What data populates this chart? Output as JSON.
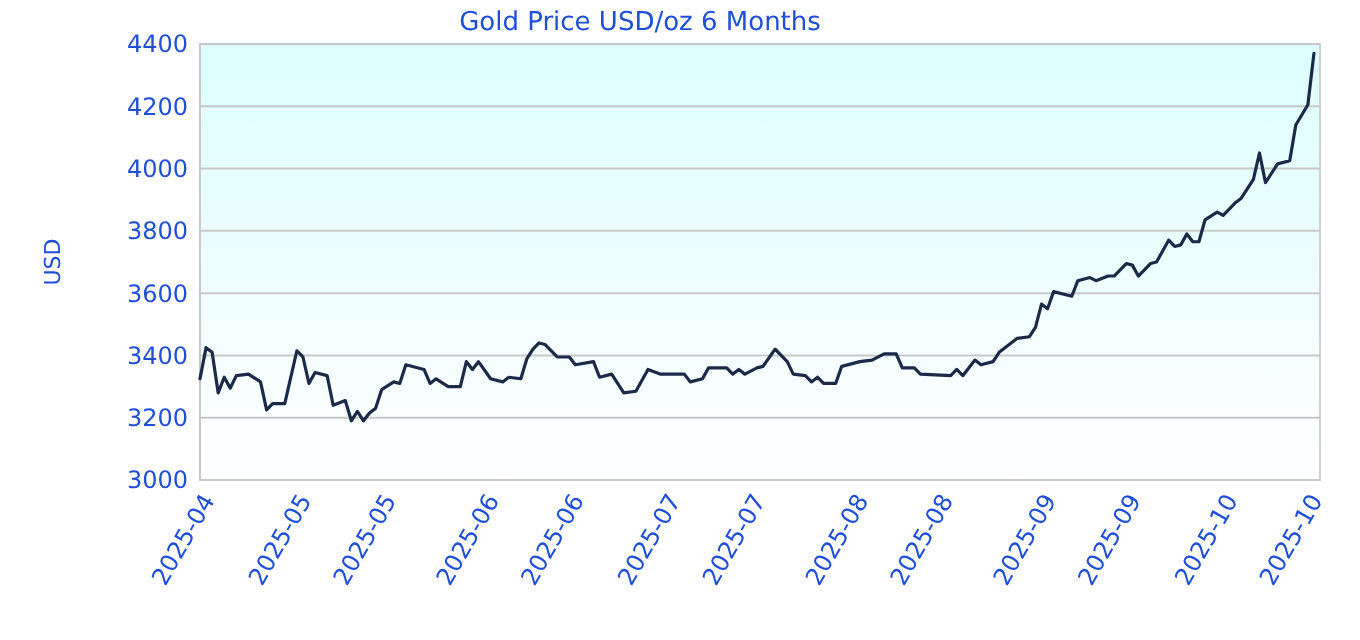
{
  "chart_data": {
    "type": "line",
    "title": "Gold Price USD/oz 6 Months",
    "ylabel": "USD",
    "xlim": [
      "2025-04-15",
      "2025-10-17"
    ],
    "xticks": [
      {
        "value": "2025-04-15",
        "label": "2025-04"
      },
      {
        "value": "2025-05-01",
        "label": "2025-05"
      },
      {
        "value": "2025-05-15",
        "label": "2025-05"
      },
      {
        "value": "2025-06-01",
        "label": "2025-06"
      },
      {
        "value": "2025-06-15",
        "label": "2025-06"
      },
      {
        "value": "2025-07-01",
        "label": "2025-07"
      },
      {
        "value": "2025-07-15",
        "label": "2025-07"
      },
      {
        "value": "2025-08-01",
        "label": "2025-08"
      },
      {
        "value": "2025-08-15",
        "label": "2025-08"
      },
      {
        "value": "2025-09-01",
        "label": "2025-09"
      },
      {
        "value": "2025-09-15",
        "label": "2025-09"
      },
      {
        "value": "2025-10-01",
        "label": "2025-10"
      },
      {
        "value": "2025-10-15",
        "label": "2025-10"
      }
    ],
    "ylim": [
      3000,
      4400
    ],
    "yticks": [
      3000,
      3200,
      3400,
      3600,
      3800,
      4000,
      4200,
      4400
    ],
    "grid": "y",
    "marker": "none",
    "line_style": "solid",
    "x": [
      "2025-04-15",
      "2025-04-16",
      "2025-04-17",
      "2025-04-18",
      "2025-04-19",
      "2025-04-20",
      "2025-04-21",
      "2025-04-23",
      "2025-04-25",
      "2025-04-26",
      "2025-04-27",
      "2025-04-29",
      "2025-05-01",
      "2025-05-02",
      "2025-05-03",
      "2025-05-04",
      "2025-05-06",
      "2025-05-07",
      "2025-05-09",
      "2025-05-10",
      "2025-05-11",
      "2025-05-12",
      "2025-05-13",
      "2025-05-14",
      "2025-05-15",
      "2025-05-17",
      "2025-05-18",
      "2025-05-19",
      "2025-05-22",
      "2025-05-23",
      "2025-05-24",
      "2025-05-26",
      "2025-05-28",
      "2025-05-29",
      "2025-05-30",
      "2025-05-31",
      "2025-06-02",
      "2025-06-04",
      "2025-06-05",
      "2025-06-07",
      "2025-06-08",
      "2025-06-09",
      "2025-06-10",
      "2025-06-11",
      "2025-06-13",
      "2025-06-15",
      "2025-06-16",
      "2025-06-19",
      "2025-06-20",
      "2025-06-22",
      "2025-06-24",
      "2025-06-26",
      "2025-06-28",
      "2025-06-30",
      "2025-07-04",
      "2025-07-05",
      "2025-07-07",
      "2025-07-08",
      "2025-07-11",
      "2025-07-12",
      "2025-07-13",
      "2025-07-14",
      "2025-07-16",
      "2025-07-17",
      "2025-07-19",
      "2025-07-21",
      "2025-07-22",
      "2025-07-24",
      "2025-07-25",
      "2025-07-26",
      "2025-07-27",
      "2025-07-29",
      "2025-07-30",
      "2025-08-02",
      "2025-08-04",
      "2025-08-06",
      "2025-08-08",
      "2025-08-09",
      "2025-08-11",
      "2025-08-12",
      "2025-08-17",
      "2025-08-18",
      "2025-08-19",
      "2025-08-21",
      "2025-08-22",
      "2025-08-24",
      "2025-08-25",
      "2025-08-28",
      "2025-08-30",
      "2025-08-31",
      "2025-09-01",
      "2025-09-02",
      "2025-09-03",
      "2025-09-06",
      "2025-09-07",
      "2025-09-09",
      "2025-09-10",
      "2025-09-12",
      "2025-09-13",
      "2025-09-15",
      "2025-09-16",
      "2025-09-17",
      "2025-09-19",
      "2025-09-20",
      "2025-09-22",
      "2025-09-23",
      "2025-09-24",
      "2025-09-25",
      "2025-09-26",
      "2025-09-27",
      "2025-09-28",
      "2025-09-30",
      "2025-10-01",
      "2025-10-03",
      "2025-10-04",
      "2025-10-06",
      "2025-10-07",
      "2025-10-08",
      "2025-10-10",
      "2025-10-12",
      "2025-10-13",
      "2025-10-15",
      "2025-10-16"
    ],
    "series": [
      {
        "color": "#1a2a48",
        "values": [
          3325,
          3425,
          3410,
          3280,
          3330,
          3295,
          3335,
          3340,
          3315,
          3225,
          3245,
          3245,
          3415,
          3395,
          3310,
          3345,
          3335,
          3240,
          3255,
          3190,
          3220,
          3190,
          3215,
          3230,
          3290,
          3315,
          3310,
          3370,
          3355,
          3310,
          3325,
          3300,
          3300,
          3380,
          3355,
          3380,
          3325,
          3315,
          3330,
          3325,
          3390,
          3420,
          3440,
          3435,
          3395,
          3395,
          3370,
          3380,
          3330,
          3340,
          3280,
          3285,
          3355,
          3340,
          3340,
          3315,
          3325,
          3360,
          3360,
          3340,
          3355,
          3340,
          3360,
          3365,
          3420,
          3380,
          3340,
          3335,
          3315,
          3330,
          3310,
          3310,
          3365,
          3380,
          3385,
          3405,
          3405,
          3360,
          3360,
          3340,
          3335,
          3355,
          3335,
          3385,
          3370,
          3380,
          3410,
          3455,
          3460,
          3490,
          3565,
          3550,
          3605,
          3590,
          3640,
          3650,
          3640,
          3655,
          3655,
          3695,
          3690,
          3655,
          3695,
          3700,
          3770,
          3750,
          3755,
          3790,
          3765,
          3765,
          3835,
          3860,
          3850,
          3890,
          3905,
          3965,
          4050,
          3955,
          4015,
          4025,
          4140,
          4205,
          4370
        ]
      }
    ]
  }
}
